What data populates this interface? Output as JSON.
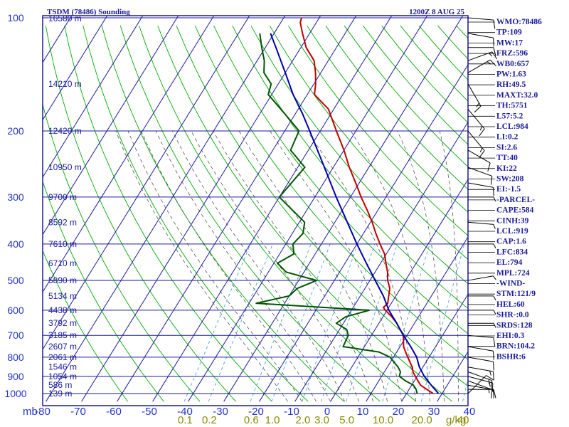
{
  "header": {
    "title": "TSDM (78486) Sounding",
    "datetime": "1200Z  8 AUG 25"
  },
  "chart_data": {
    "type": "line",
    "title": "TSDM (78486) Sounding",
    "xlabel": "",
    "ylabel": "mb",
    "pressure_unit_label": "mb",
    "mixing_ratio_unit_label": "g/kg",
    "temperature_ticks": [
      -80,
      -70,
      -60,
      -50,
      -40,
      -30,
      -20,
      -10,
      0,
      10,
      20,
      30,
      40
    ],
    "temperature_tick_labels": [
      "-80",
      "-70",
      "-60",
      "-50",
      "-40",
      "-30",
      "-20",
      "-10",
      "0",
      "10",
      "20",
      "30",
      "40"
    ],
    "xlim": [
      -80,
      40
    ],
    "pressure_ticks": [
      100,
      200,
      300,
      400,
      500,
      600,
      700,
      800,
      900,
      1000
    ],
    "pressure_tick_labels": [
      "100",
      "200",
      "300",
      "400",
      "500",
      "600",
      "700",
      "800",
      "900",
      "1000"
    ],
    "ylim": [
      1050,
      100
    ],
    "y_scale": "log",
    "height_levels": [
      {
        "p": 100,
        "label": "16580 m"
      },
      {
        "p": 150,
        "label": "14210 m"
      },
      {
        "p": 200,
        "label": "12420 m"
      },
      {
        "p": 250,
        "label": "10950 m"
      },
      {
        "p": 300,
        "label": "9700 m"
      },
      {
        "p": 350,
        "label": "8592 m"
      },
      {
        "p": 400,
        "label": "7610 m"
      },
      {
        "p": 450,
        "label": "6710 m"
      },
      {
        "p": 500,
        "label": "5890 m"
      },
      {
        "p": 550,
        "label": "5134 m"
      },
      {
        "p": 600,
        "label": "4438 m"
      },
      {
        "p": 650,
        "label": "3792 m"
      },
      {
        "p": 700,
        "label": "3185 m"
      },
      {
        "p": 750,
        "label": "2607 m"
      },
      {
        "p": 800,
        "label": "2061 m"
      },
      {
        "p": 850,
        "label": "1546 m"
      },
      {
        "p": 900,
        "label": "1054 m"
      },
      {
        "p": 950,
        "label": "586 m"
      },
      {
        "p": 1000,
        "label": "139 m"
      }
    ],
    "mixing_ratio_labels": [
      {
        "w": 0.1,
        "label": "0.1"
      },
      {
        "w": 0.2,
        "label": "0.2"
      },
      {
        "w": 0.6,
        "label": "0.6"
      },
      {
        "w": 1.0,
        "label": "1.0"
      },
      {
        "w": 2.0,
        "label": "2.0"
      },
      {
        "w": 3.0,
        "label": "3.0"
      },
      {
        "w": 5.0,
        "label": "5.0"
      },
      {
        "w": 10.0,
        "label": "10.0"
      },
      {
        "w": 20.0,
        "label": "20.0"
      },
      {
        "w": 40.0,
        "label": "40"
      }
    ],
    "series": [
      {
        "color": "#c00000",
        "points": [
          [
            1000,
            27.5
          ],
          [
            975,
            25
          ],
          [
            950,
            22.5
          ],
          [
            925,
            21
          ],
          [
            900,
            19.5
          ],
          [
            875,
            18
          ],
          [
            850,
            17
          ],
          [
            825,
            15.5
          ],
          [
            800,
            14
          ],
          [
            775,
            12.5
          ],
          [
            750,
            11
          ],
          [
            725,
            10
          ],
          [
            700,
            9
          ],
          [
            675,
            7
          ],
          [
            650,
            5
          ],
          [
            625,
            2.5
          ],
          [
            600,
            -0.5
          ],
          [
            590,
            -1.5
          ],
          [
            575,
            -1
          ],
          [
            550,
            -2
          ],
          [
            525,
            -3
          ],
          [
            500,
            -5
          ],
          [
            475,
            -6.5
          ],
          [
            450,
            -8.5
          ],
          [
            425,
            -10.5
          ],
          [
            400,
            -13.5
          ],
          [
            375,
            -16.5
          ],
          [
            350,
            -19.5
          ],
          [
            325,
            -23
          ],
          [
            300,
            -27
          ],
          [
            275,
            -31
          ],
          [
            250,
            -35.5
          ],
          [
            225,
            -40
          ],
          [
            200,
            -45.5
          ],
          [
            175,
            -51.5
          ],
          [
            160,
            -58
          ],
          [
            150,
            -59.5
          ],
          [
            140,
            -61.5
          ],
          [
            130,
            -64
          ],
          [
            120,
            -68.5
          ],
          [
            110,
            -72
          ],
          [
            103,
            -74.5
          ],
          [
            100,
            -75
          ]
        ]
      },
      {
        "color": "#005500",
        "points": [
          [
            1000,
            23
          ],
          [
            975,
            22
          ],
          [
            950,
            20.5
          ],
          [
            925,
            17.5
          ],
          [
            900,
            15
          ],
          [
            875,
            14.5
          ],
          [
            850,
            13
          ],
          [
            800,
            9
          ],
          [
            775,
            5
          ],
          [
            750,
            -6
          ],
          [
            700,
            -6.5
          ],
          [
            675,
            -8
          ],
          [
            650,
            -12
          ],
          [
            625,
            -10.5
          ],
          [
            600,
            -5
          ],
          [
            575,
            -38
          ],
          [
            550,
            -30
          ],
          [
            525,
            -29
          ],
          [
            500,
            -25
          ],
          [
            475,
            -35
          ],
          [
            450,
            -39
          ],
          [
            425,
            -36
          ],
          [
            400,
            -38
          ],
          [
            375,
            -37
          ],
          [
            350,
            -38.5
          ],
          [
            300,
            -50
          ],
          [
            250,
            -48
          ],
          [
            225,
            -55
          ],
          [
            200,
            -56
          ],
          [
            180,
            -63
          ],
          [
            160,
            -71
          ],
          [
            150,
            -72
          ],
          [
            140,
            -76
          ],
          [
            130,
            -78
          ],
          [
            120,
            -81
          ],
          [
            110,
            -84
          ]
        ]
      },
      {
        "color": "#0000aa",
        "points": [
          [
            1000,
            29
          ],
          [
            950,
            25.5
          ],
          [
            900,
            22
          ],
          [
            850,
            19
          ],
          [
            800,
            16.5
          ],
          [
            750,
            13
          ],
          [
            700,
            9
          ],
          [
            650,
            5
          ],
          [
            600,
            0.5
          ],
          [
            550,
            -3.5
          ],
          [
            500,
            -8.5
          ],
          [
            450,
            -14
          ],
          [
            400,
            -20
          ],
          [
            350,
            -26.5
          ],
          [
            300,
            -34
          ],
          [
            250,
            -42.5
          ],
          [
            200,
            -53
          ],
          [
            180,
            -58
          ],
          [
            160,
            -64
          ],
          [
            140,
            -70
          ],
          [
            120,
            -77
          ],
          [
            110,
            -81
          ]
        ]
      }
    ],
    "wind_barbs": [
      {
        "p": 1000,
        "dir": 45,
        "kt": 10
      },
      {
        "p": 975,
        "dir": 90,
        "kt": 10
      },
      {
        "p": 950,
        "dir": 100,
        "kt": 10
      },
      {
        "p": 925,
        "dir": 110,
        "kt": 15
      },
      {
        "p": 900,
        "dir": 105,
        "kt": 15
      },
      {
        "p": 875,
        "dir": 110,
        "kt": 15
      },
      {
        "p": 850,
        "dir": 100,
        "kt": 15
      },
      {
        "p": 800,
        "dir": 100,
        "kt": 10
      },
      {
        "p": 750,
        "dir": 100,
        "kt": 10
      },
      {
        "p": 700,
        "dir": 95,
        "kt": 10
      },
      {
        "p": 650,
        "dir": 90,
        "kt": 5
      },
      {
        "p": 600,
        "dir": 90,
        "kt": 5
      },
      {
        "p": 550,
        "dir": 90,
        "kt": 5
      },
      {
        "p": 500,
        "dir": 80,
        "kt": 5
      },
      {
        "p": 400,
        "dir": 90,
        "kt": 5
      },
      {
        "p": 350,
        "dir": 95,
        "kt": 5
      },
      {
        "p": 300,
        "dir": 90,
        "kt": 5
      },
      {
        "p": 275,
        "dir": 100,
        "kt": 10
      },
      {
        "p": 250,
        "dir": 110,
        "kt": 10
      },
      {
        "p": 225,
        "dir": 120,
        "kt": 10
      },
      {
        "p": 200,
        "dir": 140,
        "kt": 15
      },
      {
        "p": 175,
        "dir": 140,
        "kt": 15
      },
      {
        "p": 150,
        "dir": 150,
        "kt": 15
      },
      {
        "p": 140,
        "dir": 60,
        "kt": 15
      },
      {
        "p": 130,
        "dir": 70,
        "kt": 15
      },
      {
        "p": 120,
        "dir": 90,
        "kt": 10
      },
      {
        "p": 110,
        "dir": 100,
        "kt": 10
      },
      {
        "p": 100,
        "dir": 95,
        "kt": 10
      }
    ],
    "grid": true
  },
  "indices": [
    "WMO:78486",
    "TP:109",
    "MW:17",
    "FRZ:596",
    "WB0:657",
    "PW:1.63",
    "RH:49.5",
    "MAXT:32.0",
    "TH:5751",
    "L57:5.2",
    "LCL:984",
    "LI:0.2",
    "SI:2.6",
    "TT:40",
    "KI:22",
    "SW:208",
    "EI:-1.5",
    "-PARCEL-",
    "CAPE:584",
    "CINH:39",
    "LCL:919",
    "CAP:1.6",
    "LFC:834",
    "EL:794",
    "MPL:724",
    "-WIND-",
    "STM:121/9",
    "HEL:60",
    "SHR-:0.0",
    "SRDS:128",
    "EHI:0.3",
    "BRN:104.2",
    "BSHR:6"
  ],
  "colors": {
    "frame": "#1a1a99",
    "isotherm": "#1a1a99",
    "dry_adiabat": "#00aa00",
    "moist_adiabat": "#555555",
    "mixing_ratio": "#4aa0d8",
    "temperature": "#c00000",
    "dewpoint": "#005500",
    "parcel": "#0000aa",
    "barb": "#000000"
  }
}
